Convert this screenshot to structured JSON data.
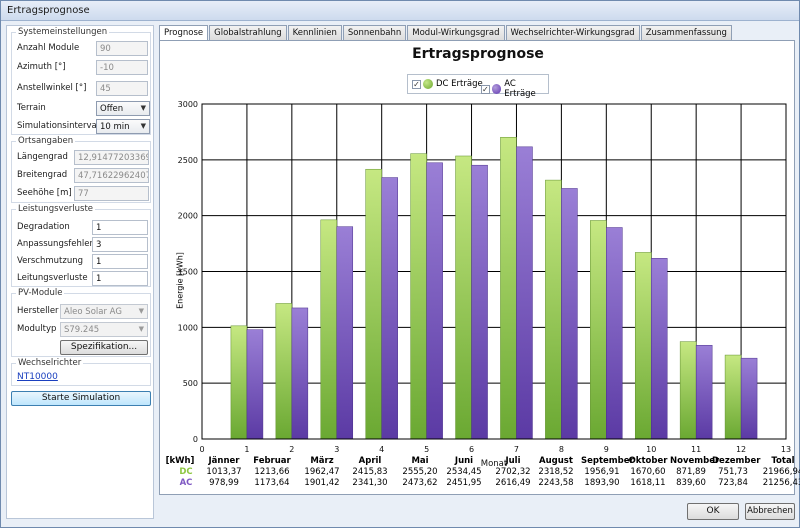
{
  "window": {
    "title": "Ertragsprognose"
  },
  "left": {
    "system": {
      "title": "Systemeinstellungen",
      "anzahl_label": "Anzahl Module",
      "anzahl": "90",
      "azimuth_label": "Azimuth [°]",
      "azimuth": "-10",
      "anstell_label": "Anstellwinkel [°]",
      "anstell": "45",
      "terrain_label": "Terrain",
      "terrain": "Offen",
      "interval_label": "Simulationsinterval",
      "interval": "10 min"
    },
    "ort": {
      "title": "Ortsangaben",
      "laenge_label": "Längengrad",
      "laenge": "12,9147720336914",
      "breite_label": "Breitengrad",
      "breite": "47,716229624073",
      "hoehe_label": "Seehöhe [m]",
      "hoehe": "77"
    },
    "verluste": {
      "title": "Leistungsverluste",
      "deg_label": "Degradation",
      "deg": "1",
      "anp_label": "Anpassungsfehler",
      "anp": "3",
      "ver_label": "Verschmutzung",
      "ver": "1",
      "lei_label": "Leitungsverluste",
      "lei": "1"
    },
    "pv": {
      "title": "PV-Module",
      "hersteller_label": "Hersteller",
      "hersteller": "Aleo Solar AG",
      "typ_label": "Modultyp",
      "typ": "S79.245",
      "spec_button": "Spezifikation..."
    },
    "wr": {
      "title": "Wechselrichter",
      "value": "NT10000"
    },
    "start_button": "Starte Simulation"
  },
  "tabs": [
    "Prognose",
    "Globalstrahlung",
    "Kennlinien",
    "Sonnenbahn",
    "Modul-Wirkungsgrad",
    "Wechselrichter-Wirkungsgrad",
    "Zusammenfassung"
  ],
  "chart_data": {
    "type": "bar",
    "title": "Ertragsprognose",
    "xlabel": "Monat",
    "ylabel": "Energie [kWh]",
    "xlim": [
      0,
      13
    ],
    "ylim": [
      0,
      3000
    ],
    "x_ticks": [
      0,
      1,
      2,
      3,
      4,
      5,
      6,
      7,
      8,
      9,
      10,
      11,
      12,
      13
    ],
    "y_ticks": [
      0,
      500,
      1000,
      1500,
      2000,
      2500,
      3000
    ],
    "grid": true,
    "legend_position": "top-center",
    "categories": [
      1,
      2,
      3,
      4,
      5,
      6,
      7,
      8,
      9,
      10,
      11,
      12
    ],
    "series": [
      {
        "name": "DC Erträge",
        "color": "#8cc63f",
        "values": [
          1013.37,
          1213.66,
          1962.47,
          2415.83,
          2555.2,
          2534.45,
          2702.32,
          2318.52,
          1956.91,
          1670.6,
          871.89,
          751.73
        ]
      },
      {
        "name": "AC Erträge",
        "color": "#7e57c2",
        "values": [
          978.99,
          1173.64,
          1901.42,
          2341.3,
          2473.62,
          2451.95,
          2616.49,
          2243.58,
          1893.9,
          1618.11,
          839.6,
          723.84
        ]
      }
    ]
  },
  "table": {
    "unit": "[kWh]",
    "months": [
      "Jänner",
      "Februar",
      "März",
      "April",
      "Mai",
      "Juni",
      "Juli",
      "August",
      "September",
      "Oktober",
      "November",
      "Dezember",
      "Total"
    ],
    "rows": [
      {
        "label": "DC",
        "color": "#8cc63f",
        "values": [
          "1013,37",
          "1213,66",
          "1962,47",
          "2415,83",
          "2555,20",
          "2534,45",
          "2702,32",
          "2318,52",
          "1956,91",
          "1670,60",
          "871,89",
          "751,73",
          "21966,94"
        ]
      },
      {
        "label": "AC",
        "color": "#7e57c2",
        "values": [
          "978,99",
          "1173,64",
          "1901,42",
          "2341,30",
          "2473,62",
          "2451,95",
          "2616,49",
          "2243,58",
          "1893,90",
          "1618,11",
          "839,60",
          "723,84",
          "21256,43"
        ]
      }
    ]
  },
  "footer": {
    "ok": "OK",
    "cancel": "Abbrechen"
  }
}
